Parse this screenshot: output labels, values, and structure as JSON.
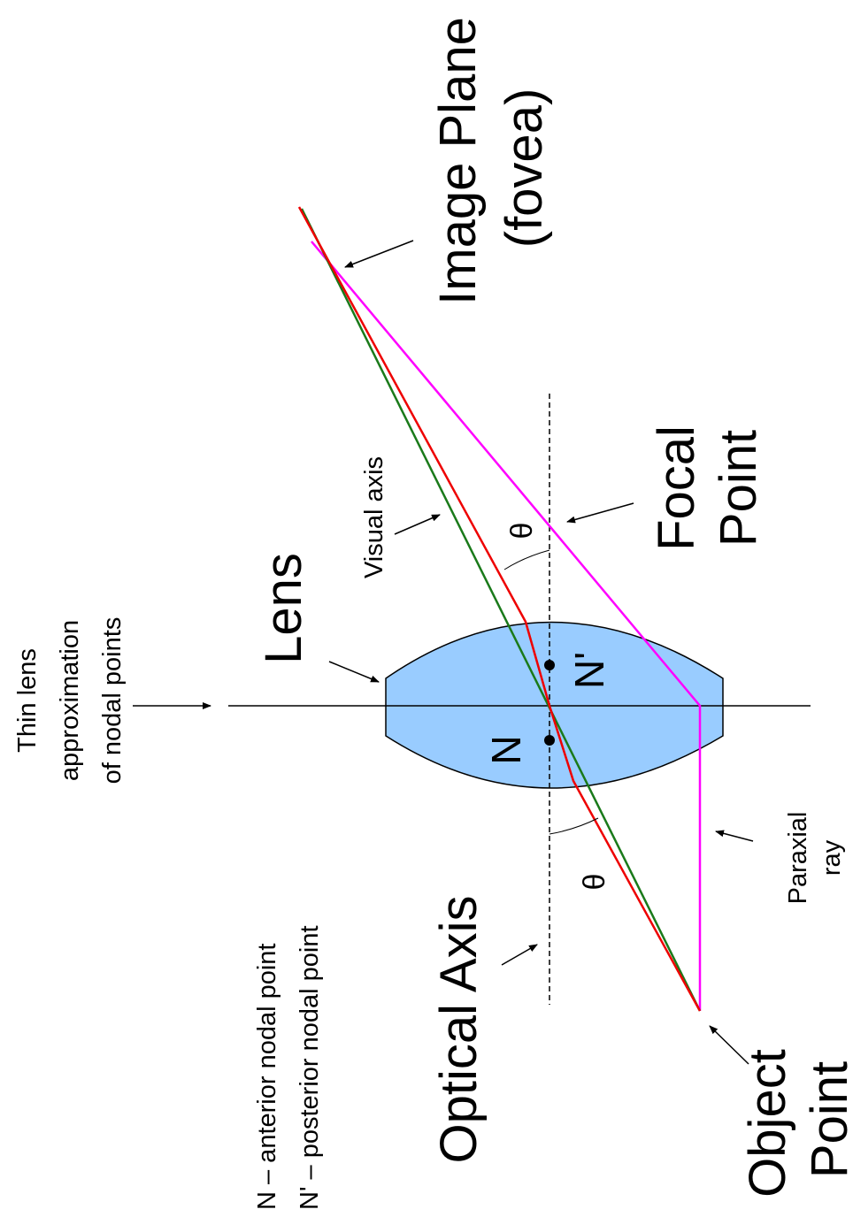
{
  "labels": {
    "thin_lens_line1": "Thin lens",
    "thin_lens_line2": "approximation",
    "thin_lens_line3": "of nodal points",
    "lens": "Lens",
    "visual_axis": "Visual axis",
    "image_plane": "Image Plane",
    "fovea": "(fovea)",
    "focal": "Focal",
    "focal_point": "Point",
    "n_prime": "N'",
    "n": "N",
    "theta": "θ",
    "paraxial": "Paraxial",
    "ray": "ray",
    "optical_axis": "Optical Axis",
    "object": "Object",
    "object_point": "Point",
    "legend_n": "N – anterior nodal point",
    "legend_n_prime": "N' – posterior nodal point"
  },
  "colors": {
    "lens_fill": "#99ccff",
    "principal_ray": "#ee0000",
    "visual_axis": "#1a7a1a",
    "paraxial_ray": "#ff00ff",
    "axis": "#000000"
  }
}
